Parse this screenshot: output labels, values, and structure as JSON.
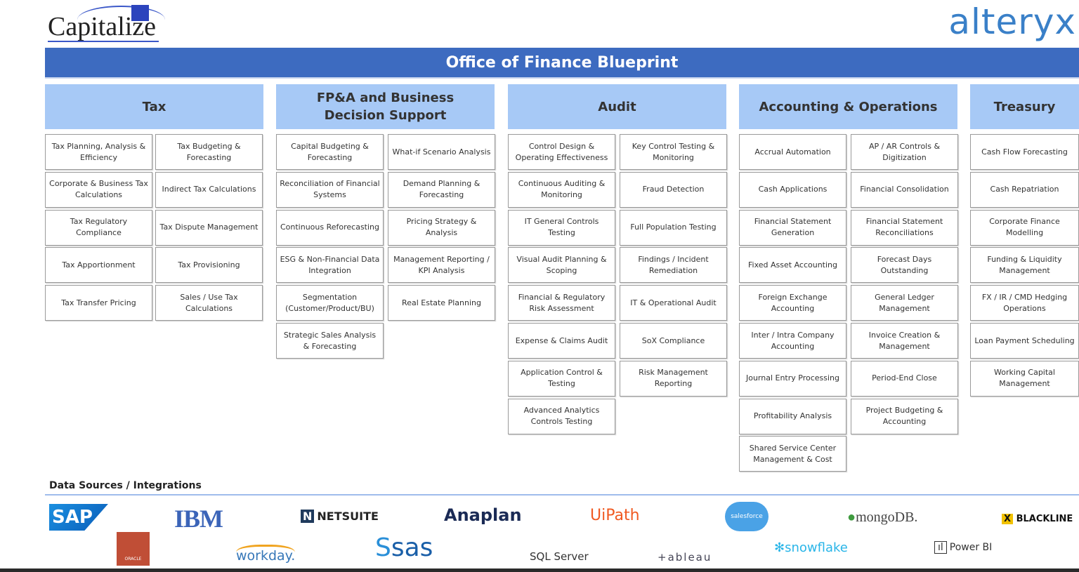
{
  "logos": {
    "capitalize": "Capitalize",
    "alteryx": "alteryx"
  },
  "title": "Office of Finance Blueprint",
  "columns": [
    {
      "header": "Tax",
      "cells": [
        [
          "Tax Planning, Analysis & Efficiency",
          "Corporate & Business Tax Calculations",
          "Tax Regulatory Compliance",
          "Tax Apportionment",
          "Tax Transfer Pricing"
        ],
        [
          "Tax Budgeting & Forecasting",
          "Indirect Tax Calculations",
          "Tax Dispute Management",
          "Tax Provisioning",
          "Sales / Use Tax Calculations"
        ]
      ]
    },
    {
      "header": "FP&A and Business Decision Support",
      "cells": [
        [
          "Capital Budgeting & Forecasting",
          "Reconciliation of Financial Systems",
          "Continuous Reforecasting",
          "ESG & Non-Financial Data Integration",
          "Segmentation (Customer/Product/BU)",
          "Strategic Sales Analysis & Forecasting"
        ],
        [
          "What-if Scenario Analysis",
          "Demand Planning & Forecasting",
          "Pricing Strategy & Analysis",
          "Management Reporting / KPI Analysis",
          "Real Estate Planning"
        ]
      ]
    },
    {
      "header": "Audit",
      "cells": [
        [
          "Control Design & Operating Effectiveness",
          "Continuous Auditing & Monitoring",
          "IT General Controls Testing",
          "Visual Audit Planning & Scoping",
          "Financial & Regulatory Risk Assessment",
          "Expense & Claims Audit",
          "Application Control & Testing",
          "Advanced Analytics Controls Testing"
        ],
        [
          "Key Control Testing & Monitoring",
          "Fraud Detection",
          "Full Population Testing",
          "Findings / Incident Remediation",
          "IT & Operational Audit",
          "SoX Compliance",
          "Risk Management Reporting"
        ]
      ]
    },
    {
      "header": "Accounting & Operations",
      "cells": [
        [
          "Accrual Automation",
          "Cash Applications",
          "Financial Statement Generation",
          "Fixed Asset Accounting",
          "Foreign Exchange Accounting",
          "Inter / Intra Company Accounting",
          "Journal Entry Processing",
          "Profitability Analysis",
          "Shared Service Center Management & Cost"
        ],
        [
          "AP / AR Controls & Digitization",
          "Financial Consolidation",
          "Financial Statement Reconciliations",
          "Forecast Days Outstanding",
          "General Ledger Management",
          "Invoice Creation & Management",
          "Period-End Close",
          "Project Budgeting & Accounting"
        ]
      ]
    },
    {
      "header": "Treasury",
      "cells": [
        [
          "Cash Flow Forecasting",
          "Cash Repatriation",
          "Corporate Finance Modelling",
          "Funding & Liquidity Management",
          "FX / IR / CMD Hedging Operations",
          "Loan Payment Scheduling",
          "Working Capital Management"
        ]
      ]
    }
  ],
  "data_sources": {
    "label": "Data Sources / Integrations",
    "logos": [
      "SAP",
      "IBM",
      "NETSUITE",
      "Anaplan",
      "UiPath",
      "salesforce",
      "mongoDB.",
      "BLACKLINE",
      "ORACLE",
      "workday.",
      "sas",
      "SQL Server",
      "+ableau",
      "snowflake",
      "Power BI"
    ]
  },
  "colors": {
    "title_bar": "#3d6bc0",
    "header": "#a7c9f6",
    "alteryx": "#3a80c8"
  }
}
